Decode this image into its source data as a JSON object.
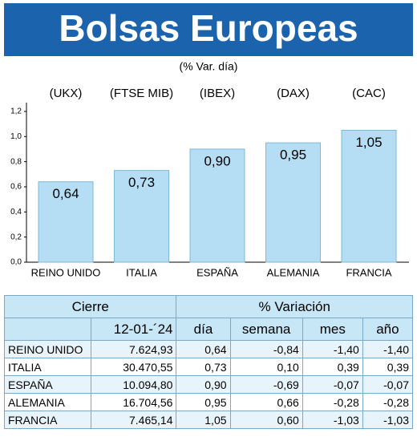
{
  "chart_data": {
    "type": "bar",
    "title": "Bolsas Europeas",
    "subtitle": "(% Var. día)",
    "annotations": [
      "(UKX)",
      "(FTSE MIB)",
      "(IBEX)",
      "(DAX)",
      "(CAC)"
    ],
    "categories": [
      "REINO UNIDO",
      "ITALIA",
      "ESPAÑA",
      "ALEMANIA",
      "FRANCIA"
    ],
    "values": [
      0.64,
      0.73,
      0.9,
      0.95,
      1.05
    ],
    "value_labels": [
      "0,64",
      "0,73",
      "0,90",
      "0,95",
      "1,05"
    ],
    "color": "#b5def5",
    "ylim": [
      0,
      1.27
    ],
    "yticks": [
      {
        "value": 0,
        "label": "0,0"
      },
      {
        "value": 0.2,
        "label": "0,2"
      },
      {
        "value": 0.4,
        "label": "0,4"
      },
      {
        "value": 0.6,
        "label": "0,6"
      },
      {
        "value": 0.8,
        "label": "0,8"
      },
      {
        "value": 1.0,
        "label": "1,0"
      },
      {
        "value": 1.2,
        "label": "1,2"
      }
    ],
    "grid": false
  },
  "table": {
    "header_top": [
      "Cierre",
      "% Variación"
    ],
    "columns": [
      "12-01-´24",
      "día",
      "semana",
      "mes",
      "año"
    ],
    "rows": [
      [
        "REINO UNIDO",
        "7.624,93",
        "0,64",
        "-0,84",
        "-1,40",
        "-1,40"
      ],
      [
        "ITALIA",
        "30.470,55",
        "0,73",
        "0,10",
        "0,39",
        "0,39"
      ],
      [
        "ESPAÑA",
        "10.094,80",
        "0,90",
        "-0,69",
        "-0,07",
        "-0,07"
      ],
      [
        "ALEMANIA",
        "16.704,56",
        "0,95",
        "0,66",
        "-0,28",
        "-0,28"
      ],
      [
        "FRANCIA",
        "7.465,14",
        "1,05",
        "0,60",
        "-1,03",
        "-1,03"
      ]
    ]
  }
}
